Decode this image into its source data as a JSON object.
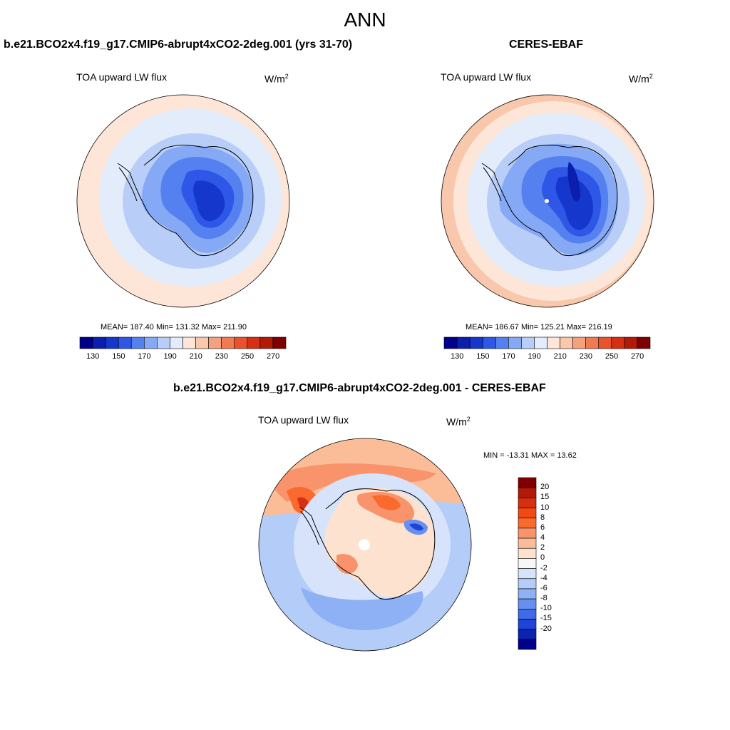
{
  "main_title": "ANN",
  "panels": [
    {
      "title": "b.e21.BCO2x4.f19_g17.CMIP6-abrupt4xCO2-2deg.001 (yrs 31-70)",
      "variable": "TOA upward LW flux",
      "units_base": "W/m",
      "units_exp": "2",
      "stats": "MEAN= 187.40  Min= 131.32  Max= 211.90",
      "colorbar_labels": [
        "130",
        "150",
        "170",
        "190",
        "210",
        "230",
        "250",
        "270"
      ]
    },
    {
      "title": "CERES-EBAF",
      "variable": "TOA upward LW flux",
      "units_base": "W/m",
      "units_exp": "2",
      "stats": "MEAN= 186.67  Min= 125.21  Max= 216.19",
      "colorbar_labels": [
        "130",
        "150",
        "170",
        "190",
        "210",
        "230",
        "250",
        "270"
      ]
    },
    {
      "title": "b.e21.BCO2x4.f19_g17.CMIP6-abrupt4xCO2-2deg.001 - CERES-EBAF",
      "variable": "TOA upward LW flux",
      "units_base": "W/m",
      "units_exp": "2",
      "stats": "MIN = -13.31 MAX =  13.62",
      "colorbar_labels": [
        "20",
        "15",
        "10",
        "8",
        "6",
        "4",
        "2",
        "0",
        "-2",
        "-4",
        "-6",
        "-8",
        "-10",
        "-15",
        "-20"
      ]
    }
  ],
  "colors": {
    "abs_scale": [
      "#00008b",
      "#0a1fae",
      "#1537cc",
      "#2e57e8",
      "#5580f0",
      "#86a9f5",
      "#b8cef8",
      "#e2ecfb",
      "#fde6d7",
      "#f9c7ab",
      "#f5a17e",
      "#f07a52",
      "#e9522d",
      "#d62f12",
      "#b31a06",
      "#7f0000"
    ],
    "diff_scale": [
      "#7f0000",
      "#b31a06",
      "#d62f12",
      "#f24a12",
      "#fa6a2e",
      "#f9936b",
      "#fbbd98",
      "#fde3cf",
      "#f7f7f7",
      "#d6e3fb",
      "#b4ccf8",
      "#8eb0f5",
      "#6690f0",
      "#3f6ae9",
      "#1e44d8",
      "#0b24b0",
      "#00008b"
    ]
  }
}
